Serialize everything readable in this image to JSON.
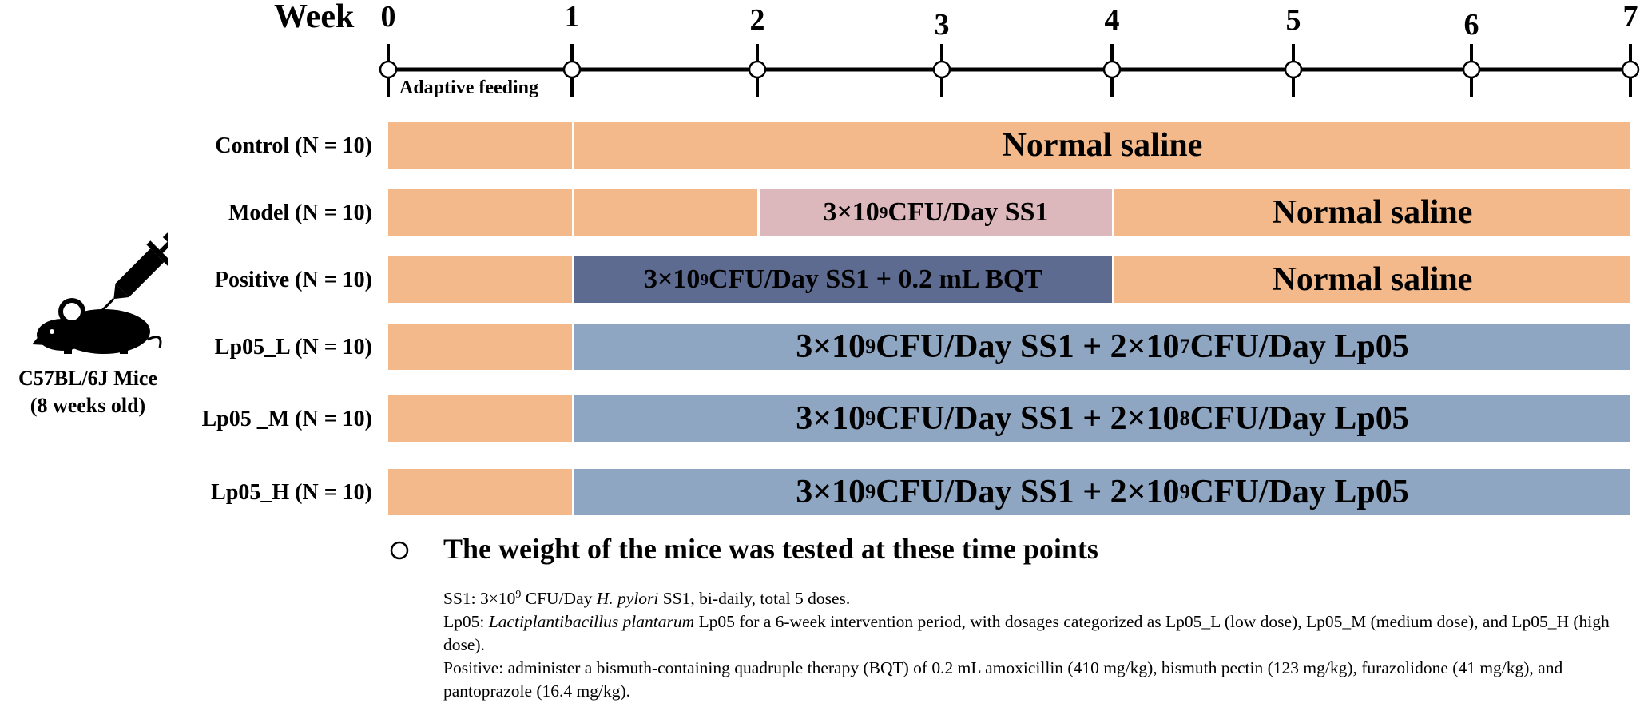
{
  "timeline": {
    "unit_label": "Week",
    "ticks": [
      "0",
      "1",
      "2",
      "3",
      "4",
      "5",
      "6",
      "7"
    ],
    "adaptive_label": "Adaptive feeding",
    "weigh_points": [
      0,
      1,
      2,
      3,
      4,
      5,
      6,
      7
    ]
  },
  "mouse": {
    "caption_line1": "C57BL/6J Mice",
    "caption_line2": "(8 weeks old)",
    "icon": "mouse-syringe-icon"
  },
  "colors": {
    "adaptive": "#f4b98a",
    "saline": "#f4b98a",
    "ss1": "#dcb8bc",
    "ss1_bqt": "#5d6b91",
    "ss1_lp05": "#8fa6c3"
  },
  "groups": [
    {
      "label": "Control (N = 10)",
      "segments": [
        {
          "start_week": 0,
          "end_week": 1,
          "kind": "adaptive",
          "parts": []
        },
        {
          "start_week": 1,
          "end_week": 7,
          "kind": "saline",
          "parts": [
            {
              "t": "Normal saline"
            }
          ]
        }
      ]
    },
    {
      "label": "Model (N = 10)",
      "segments": [
        {
          "start_week": 0,
          "end_week": 1,
          "kind": "adaptive",
          "parts": []
        },
        {
          "start_week": 1,
          "end_week": 2,
          "kind": "saline",
          "parts": []
        },
        {
          "start_week": 2,
          "end_week": 4,
          "kind": "ss1",
          "parts": [
            {
              "t": "3×10"
            },
            {
              "sup": "9"
            },
            {
              "t": " CFU/Day SS1"
            }
          ]
        },
        {
          "start_week": 4,
          "end_week": 7,
          "kind": "saline",
          "parts": [
            {
              "t": "Normal saline"
            }
          ]
        }
      ]
    },
    {
      "label": "Positive (N = 10)",
      "segments": [
        {
          "start_week": 0,
          "end_week": 1,
          "kind": "adaptive",
          "parts": []
        },
        {
          "start_week": 1,
          "end_week": 4,
          "kind": "ss1_bqt",
          "parts": [
            {
              "t": "3×10"
            },
            {
              "sup": "9"
            },
            {
              "t": " CFU/Day SS1 + 0.2 mL BQT"
            }
          ]
        },
        {
          "start_week": 4,
          "end_week": 7,
          "kind": "saline",
          "parts": [
            {
              "t": "Normal saline"
            }
          ]
        }
      ]
    },
    {
      "label": "Lp05_L (N = 10)",
      "segments": [
        {
          "start_week": 0,
          "end_week": 1,
          "kind": "adaptive",
          "parts": []
        },
        {
          "start_week": 1,
          "end_week": 7,
          "kind": "ss1_lp05",
          "parts": [
            {
              "t": "3×10"
            },
            {
              "sup": "9"
            },
            {
              "t": " CFU/Day SS1 + 2×10"
            },
            {
              "sup": "7"
            },
            {
              "t": " CFU/Day Lp05"
            }
          ]
        }
      ]
    },
    {
      "label": "Lp05 _M (N = 10)",
      "segments": [
        {
          "start_week": 0,
          "end_week": 1,
          "kind": "adaptive",
          "parts": []
        },
        {
          "start_week": 1,
          "end_week": 7,
          "kind": "ss1_lp05",
          "parts": [
            {
              "t": "3×10"
            },
            {
              "sup": "9"
            },
            {
              "t": " CFU/Day SS1 + 2×10"
            },
            {
              "sup": "8"
            },
            {
              "t": " CFU/Day Lp05"
            }
          ]
        }
      ]
    },
    {
      "label": "Lp05_H (N = 10)",
      "segments": [
        {
          "start_week": 0,
          "end_week": 1,
          "kind": "adaptive",
          "parts": []
        },
        {
          "start_week": 1,
          "end_week": 7,
          "kind": "ss1_lp05",
          "parts": [
            {
              "t": "3×10"
            },
            {
              "sup": "9"
            },
            {
              "t": " CFU/Day SS1 + 2×10"
            },
            {
              "sup": "9"
            },
            {
              "t": " CFU/Day Lp05"
            }
          ]
        }
      ]
    }
  ],
  "legend": {
    "text": "The weight of the mice was tested at these time points",
    "icon": "open-circle-icon"
  },
  "notes": {
    "ss1": {
      "prefix": "SS1: 3×10",
      "sup": "9",
      "mid": " CFU/Day ",
      "italic": "H. pylori",
      "suffix": " SS1, bi-daily, total 5 doses."
    },
    "lp05": {
      "prefix": "Lp05: ",
      "italic": "Lactiplantibacillus plantarum",
      "suffix": " Lp05 for a 6-week intervention period, with dosages categorized as Lp05_L (low dose), Lp05_M (medium dose), and Lp05_H (high dose)."
    },
    "positive": {
      "text": "Positive: administer a bismuth-containing quadruple therapy (BQT) of 0.2 mL amoxicillin (410 mg/kg), bismuth pectin (123 mg/kg), furazolidone (41 mg/kg), and pantoprazole (16.4 mg/kg)."
    }
  }
}
